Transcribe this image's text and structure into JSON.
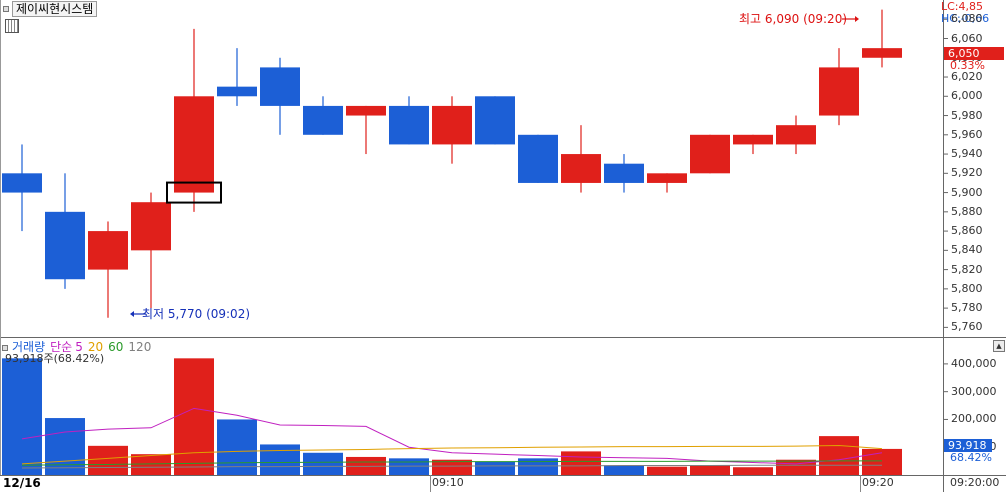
{
  "title": "제이씨현시스템",
  "limits": {
    "lc": "LC:4,85",
    "hc": "HC:-0,66"
  },
  "current": {
    "price": "6,050",
    "pct": "0.33%"
  },
  "annotations": {
    "high": "최고 6,090 (09:20)",
    "low": "최저 5,770 (09:02)"
  },
  "icons": [
    "square-bullet-icon",
    "grid-icon",
    "arrow-right-icon",
    "arrow-left-icon",
    "collapse-icon"
  ],
  "price_ticks": [
    "6,080",
    "6,060",
    "6,040",
    "6,020",
    "6,000",
    "5,980",
    "5,960",
    "5,940",
    "5,920",
    "5,900",
    "5,880",
    "5,860",
    "5,840",
    "5,820",
    "5,800",
    "5,780",
    "5,760"
  ],
  "volume_legend": {
    "label": "거래량",
    "ma_prefix": "단순",
    "ma": [
      {
        "period": "5",
        "color": "#c020c0"
      },
      {
        "period": "20",
        "color": "#e0a000"
      },
      {
        "period": "60",
        "color": "#2a9a2a"
      },
      {
        "period": "120",
        "color": "#808080"
      }
    ],
    "info": "93,918주(68.42%)"
  },
  "volume_ticks": [
    "400,000",
    "300,000",
    "200,000",
    "100,000"
  ],
  "volume_current": {
    "value": "93,918",
    "pct": "68.42%"
  },
  "x_axis": {
    "date": "12/16",
    "labels": [
      "09:10",
      "09:20"
    ],
    "end_time": "09:20:00"
  },
  "colors": {
    "up": "#e0201b",
    "down": "#1c5fd6",
    "grid": "#d6d6d6",
    "axis": "#666666"
  },
  "chart_data": {
    "type": "candlestick",
    "price_range": [
      5750,
      6100
    ],
    "candles": [
      {
        "o": 5920,
        "h": 5950,
        "l": 5860,
        "c": 5900
      },
      {
        "o": 5880,
        "h": 5920,
        "l": 5800,
        "c": 5810
      },
      {
        "o": 5820,
        "h": 5870,
        "l": 5770,
        "c": 5860
      },
      {
        "o": 5840,
        "h": 5900,
        "l": 5780,
        "c": 5890
      },
      {
        "o": 5900,
        "h": 6070,
        "l": 5880,
        "c": 6000
      },
      {
        "o": 6010,
        "h": 6050,
        "l": 5990,
        "c": 6000
      },
      {
        "o": 6030,
        "h": 6040,
        "l": 5960,
        "c": 5990
      },
      {
        "o": 5990,
        "h": 6000,
        "l": 5960,
        "c": 5960
      },
      {
        "o": 5980,
        "h": 5990,
        "l": 5940,
        "c": 5990
      },
      {
        "o": 5990,
        "h": 6000,
        "l": 5950,
        "c": 5950
      },
      {
        "o": 5950,
        "h": 6000,
        "l": 5930,
        "c": 5990
      },
      {
        "o": 6000,
        "h": 6000,
        "l": 5950,
        "c": 5950
      },
      {
        "o": 5960,
        "h": 5960,
        "l": 5910,
        "c": 5910
      },
      {
        "o": 5910,
        "h": 5970,
        "l": 5900,
        "c": 5940
      },
      {
        "o": 5930,
        "h": 5940,
        "l": 5900,
        "c": 5910
      },
      {
        "o": 5910,
        "h": 5920,
        "l": 5900,
        "c": 5920
      },
      {
        "o": 5920,
        "h": 5960,
        "l": 5920,
        "c": 5960
      },
      {
        "o": 5950,
        "h": 5960,
        "l": 5940,
        "c": 5960
      },
      {
        "o": 5950,
        "h": 5980,
        "l": 5940,
        "c": 5970
      },
      {
        "o": 5980,
        "h": 6050,
        "l": 5970,
        "c": 6030
      },
      {
        "o": 6040,
        "h": 6090,
        "l": 6030,
        "c": 6050
      }
    ],
    "volume_range": [
      0,
      450000
    ],
    "volumes": [
      420000,
      205000,
      105000,
      75000,
      420000,
      200000,
      110000,
      80000,
      65000,
      60000,
      55000,
      48000,
      60000,
      85000,
      35000,
      30000,
      35000,
      28000,
      55000,
      140000,
      93918
    ],
    "ma5": [
      130000,
      155000,
      165000,
      170000,
      240000,
      215000,
      180000,
      178000,
      175000,
      100000,
      80000,
      75000,
      70000,
      65000,
      62000,
      60000,
      50000,
      45000,
      40000,
      55000,
      80000
    ],
    "ma20": [
      40000,
      50000,
      60000,
      70000,
      80000,
      85000,
      88000,
      90000,
      92000,
      95000,
      97000,
      98000,
      100000,
      101000,
      102000,
      102000,
      103000,
      103000,
      104000,
      106000,
      95000
    ],
    "ma60": [
      35000,
      37000,
      38000,
      40000,
      42000,
      44000,
      45000,
      46000,
      47000,
      47000,
      48000,
      48000,
      48000,
      49000,
      49000,
      49000,
      50000,
      50000,
      50000,
      51000,
      51000
    ],
    "ma120": [
      25000,
      26000,
      27000,
      28000,
      29000,
      30000,
      30000,
      31000,
      31000,
      32000,
      32000,
      33000,
      33000,
      33000,
      34000,
      34000,
      34000,
      35000,
      35000,
      35000,
      35000
    ],
    "highlight_index": 4
  }
}
